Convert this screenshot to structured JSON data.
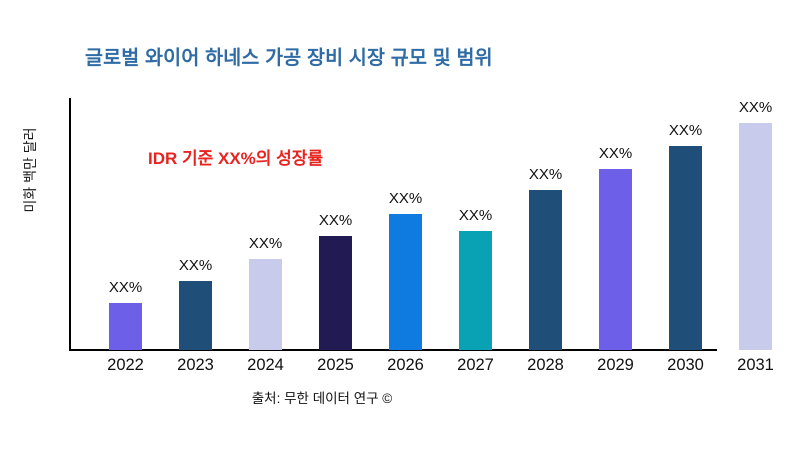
{
  "header": {
    "title": "글로벌 와이어 하네스 가공 장비 시장 규모 및 범위",
    "title_color": "#2f6ba5"
  },
  "annotation": {
    "text": "IDR 기준 XX%의 성장률",
    "color": "#e82420"
  },
  "footer": {
    "source": "출처: 무한 데이터 연구 ©"
  },
  "chart_data": {
    "type": "bar",
    "title": "글로벌 와이어 하네스 가공 장비 시장 규모 및 범위",
    "xlabel": "",
    "ylabel": "미화 백만 달러",
    "categories": [
      "2022",
      "2023",
      "2024",
      "2025",
      "2026",
      "2027",
      "2028",
      "2029",
      "2030",
      "2031"
    ],
    "values": [
      47,
      69,
      91,
      114,
      137,
      119,
      161,
      182,
      205,
      228
    ],
    "units": "relative height (numeric values masked as XX% on chart)",
    "bar_labels": [
      "XX%",
      "XX%",
      "XX%",
      "XX%",
      "XX%",
      "XX%",
      "XX%",
      "XX%",
      "XX%",
      "XX%"
    ],
    "colors": [
      "#6d5fe8",
      "#1f4e79",
      "#c9cbec",
      "#211a53",
      "#0f7ae0",
      "#09a2b5",
      "#1f4e79",
      "#6d5fe8",
      "#1f4e79",
      "#c9cbec"
    ],
    "ylim": [
      0,
      252
    ],
    "grid": false,
    "legend": null,
    "axis_color": "#000000"
  }
}
